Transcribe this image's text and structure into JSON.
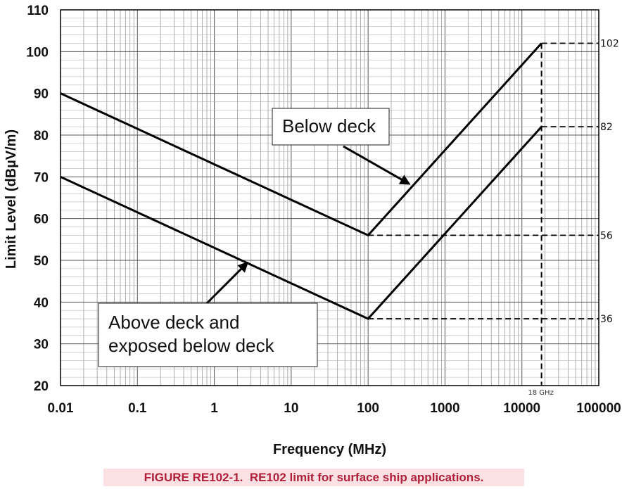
{
  "chart_data": {
    "type": "line",
    "xscale": "log",
    "xlim": [
      0.01,
      100000
    ],
    "ylim": [
      20,
      110
    ],
    "grid": true,
    "xlabel": "Frequency (MHz)",
    "ylabel": "Limit Level (dBµV/m)",
    "x_ticks": [
      "0.01",
      "0.1",
      "1",
      "10",
      "100",
      "1000",
      "10000",
      "100000"
    ],
    "y_ticks": [
      "20",
      "30",
      "40",
      "50",
      "60",
      "70",
      "80",
      "90",
      "100",
      "110"
    ],
    "series": [
      {
        "name": "Below deck",
        "x": [
          0.01,
          100,
          18000
        ],
        "y": [
          90,
          56,
          102
        ]
      },
      {
        "name": "Above deck and exposed below deck",
        "x": [
          0.01,
          100,
          18000
        ],
        "y": [
          70,
          36,
          82
        ]
      }
    ],
    "reference_levels": [
      "102",
      "82",
      "56",
      "36"
    ],
    "marker_frequency_label": "18 GHz",
    "callouts": [
      {
        "series": "Below deck",
        "lines": [
          "Below deck"
        ]
      },
      {
        "series": "Above deck and exposed below deck",
        "lines": [
          "Above deck and",
          "exposed below deck"
        ]
      }
    ]
  },
  "caption": "FIGURE RE102-1.  RE102 limit for surface ship applications."
}
